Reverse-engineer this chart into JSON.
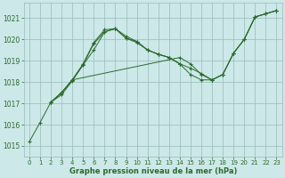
{
  "bg_color": "#cce8e8",
  "grid_color": "#99bbbb",
  "line_color": "#2d6a2d",
  "marker": "+",
  "xlabel": "Graphe pression niveau de la mer (hPa)",
  "xlabel_color": "#2d6a2d",
  "ylim": [
    1014.5,
    1021.7
  ],
  "xlim": [
    -0.5,
    23.5
  ],
  "yticks": [
    1015,
    1016,
    1017,
    1018,
    1019,
    1020,
    1021
  ],
  "xticks": [
    0,
    1,
    2,
    3,
    4,
    5,
    6,
    7,
    8,
    9,
    10,
    11,
    12,
    13,
    14,
    15,
    16,
    17,
    18,
    19,
    20,
    21,
    22,
    23
  ],
  "lines": [
    {
      "x": [
        0,
        1,
        2,
        3,
        4,
        5,
        6,
        7,
        8,
        9,
        10,
        11,
        12,
        13,
        14,
        15,
        16,
        17,
        18,
        19,
        20,
        21,
        22,
        23
      ],
      "y": [
        1015.2,
        1016.1,
        1017.05,
        1017.4,
        1018.05,
        1018.8,
        1019.8,
        1020.35,
        1020.5,
        1020.05,
        1019.85,
        1019.5,
        1019.3,
        1019.15,
        1018.85,
        1018.65,
        1018.4,
        1018.1,
        1018.35,
        1019.35,
        1020.0,
        1021.05,
        1021.2,
        1021.35
      ]
    },
    {
      "x": [
        2,
        3,
        4,
        5,
        6,
        7,
        8,
        9,
        10,
        11,
        12,
        13,
        14
      ],
      "y": [
        1017.05,
        1017.5,
        1018.1,
        1018.85,
        1019.85,
        1020.45,
        1020.5,
        1020.15,
        1019.9,
        1019.5,
        1019.3,
        1019.15,
        1018.85
      ]
    },
    {
      "x": [
        2,
        3,
        4,
        14,
        15,
        16,
        17,
        18,
        19,
        20,
        21,
        22,
        23
      ],
      "y": [
        1017.05,
        1017.5,
        1018.1,
        1019.15,
        1018.85,
        1018.35,
        1018.1,
        1018.35,
        1019.35,
        1020.0,
        1021.05,
        1021.2,
        1021.35
      ]
    },
    {
      "x": [
        2,
        3,
        4,
        5,
        6,
        7,
        8,
        9,
        10,
        11,
        12,
        13,
        14,
        15,
        16,
        17,
        18,
        19,
        20,
        21,
        22,
        23
      ],
      "y": [
        1017.05,
        1017.5,
        1018.1,
        1018.8,
        1019.5,
        1020.35,
        1020.5,
        1020.05,
        1019.9,
        1019.5,
        1019.3,
        1019.15,
        1018.85,
        1018.35,
        1018.1,
        1018.1,
        1018.35,
        1019.35,
        1020.0,
        1021.05,
        1021.2,
        1021.35
      ]
    }
  ],
  "figsize": [
    3.2,
    2.0
  ],
  "dpi": 100
}
